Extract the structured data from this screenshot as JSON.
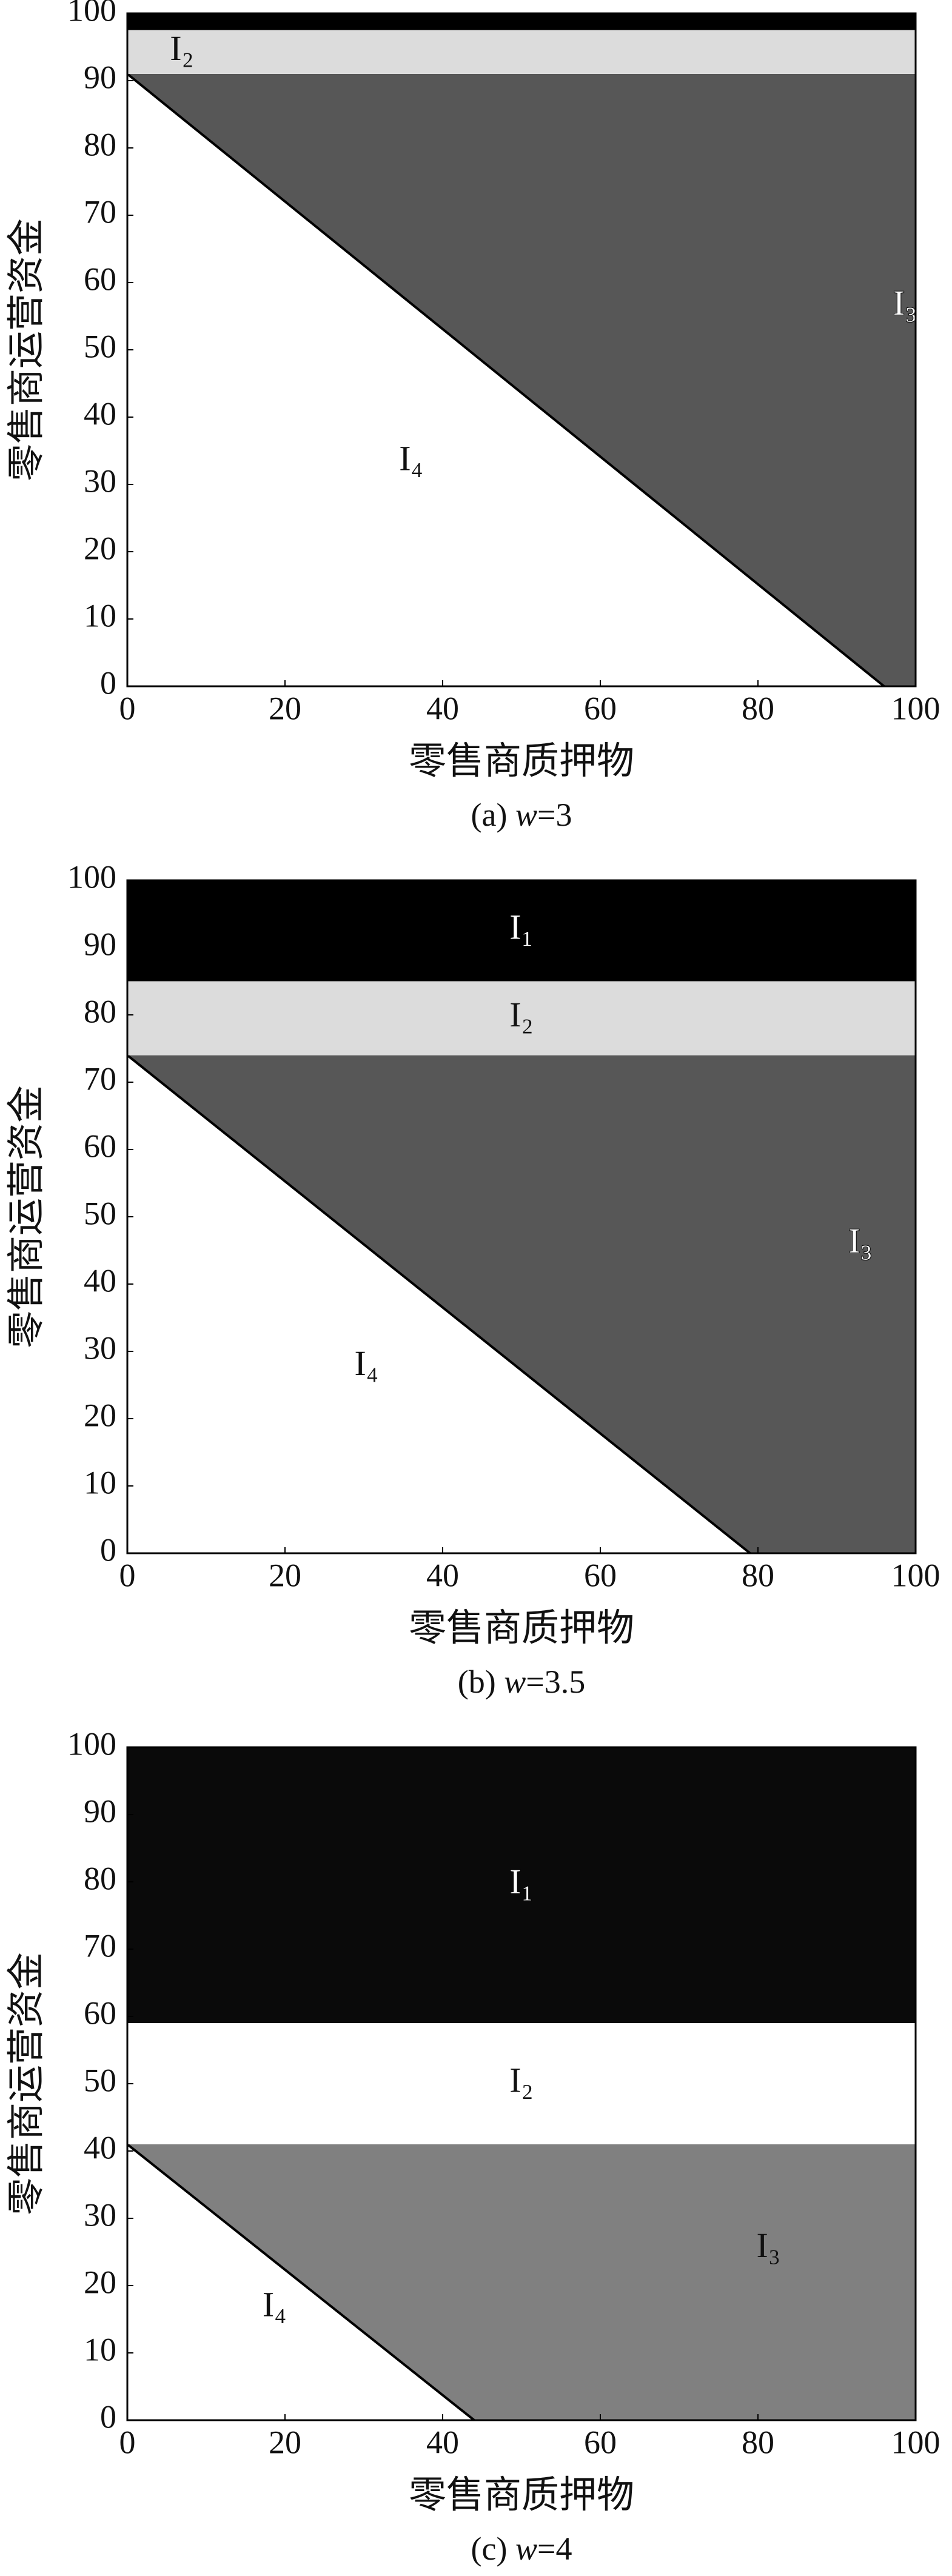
{
  "chart_data": [
    {
      "type": "region",
      "caption": [
        "(a) ",
        "w",
        "=3"
      ],
      "x_label": "零售商质押物",
      "y_label": "零售商运营资金",
      "xlim": [
        0,
        100
      ],
      "ylim": [
        0,
        100
      ],
      "xticks": [
        0,
        20,
        40,
        60,
        80,
        100
      ],
      "yticks": [
        0,
        10,
        20,
        30,
        40,
        50,
        60,
        70,
        80,
        90,
        100
      ],
      "boundary": {
        "y_intercept": 91,
        "x_intercept": 96
      },
      "bands": [
        {
          "color": "#000000",
          "y_range": [
            97.5,
            100
          ]
        },
        {
          "name": "I₂",
          "color": "#dcdcdc",
          "y_range": [
            91,
            97.5
          ]
        }
      ],
      "above": {
        "name": "I₃",
        "color": "#575757"
      },
      "below": {
        "name": "I₄",
        "color": "#ffffff"
      }
    },
    {
      "type": "region",
      "caption": [
        "(b) ",
        "w",
        "=3.5"
      ],
      "x_label": "零售商质押物",
      "y_label": "零售商运营资金",
      "xlim": [
        0,
        100
      ],
      "ylim": [
        0,
        100
      ],
      "xticks": [
        0,
        20,
        40,
        60,
        80,
        100
      ],
      "yticks": [
        0,
        10,
        20,
        30,
        40,
        50,
        60,
        70,
        80,
        90,
        100
      ],
      "boundary": {
        "y_intercept": 74,
        "x_intercept": 79
      },
      "bands": [
        {
          "name": "I₁",
          "color": "#000000",
          "y_range": [
            85,
            100
          ]
        },
        {
          "name": "I₂",
          "color": "#dcdcdc",
          "y_range": [
            74,
            85
          ]
        }
      ],
      "above": {
        "name": "I₃",
        "color": "#575757"
      },
      "below": {
        "name": "I₄",
        "color": "#ffffff"
      }
    },
    {
      "type": "region",
      "caption": [
        "(c) ",
        "w",
        "=4"
      ],
      "x_label": "零售商质押物",
      "y_label": "零售商运营资金",
      "xlim": [
        0,
        100
      ],
      "ylim": [
        0,
        100
      ],
      "xticks": [
        0,
        20,
        40,
        60,
        80,
        100
      ],
      "yticks": [
        0,
        10,
        20,
        30,
        40,
        50,
        60,
        70,
        80,
        90,
        100
      ],
      "boundary": {
        "y_intercept": 41,
        "x_intercept": 44
      },
      "bands": [
        {
          "name": "I₁",
          "color": "#0a0a0a",
          "y_range": [
            59,
            100
          ]
        },
        {
          "name": "I₂",
          "color": "#ffffff",
          "y_range": [
            41,
            59
          ]
        }
      ],
      "above": {
        "name": "I₃",
        "color": "#808080"
      },
      "below": {
        "name": "I₄",
        "color": "#ffffff"
      }
    }
  ]
}
